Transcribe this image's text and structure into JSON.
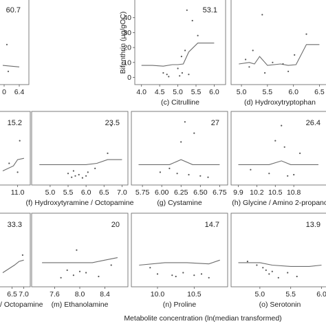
{
  "chart_data": {
    "type": "scatter",
    "ylabel": "Bifenthrin (μg/gOC)",
    "xlabel": "Metabolite concentration (ln(median transformed)",
    "panels": [
      {
        "label": "",
        "stat": "60.7",
        "xticks": [
          "0",
          "6.4"
        ],
        "xlim": [
          5.8,
          6.6
        ],
        "ylim": [
          -3,
          50
        ],
        "yticks": [],
        "line": [
          [
            5.8,
            8
          ],
          [
            6.4,
            7
          ]
        ],
        "points": [
          [
            5.95,
            22
          ],
          [
            6.0,
            4
          ]
        ]
      },
      {
        "label": "(c) Citrulline",
        "stat": "53.1",
        "xticks": [
          "4.0",
          "4.5",
          "5.0",
          "5.5",
          "6.0"
        ],
        "xlim": [
          3.93,
          6.2
        ],
        "ylim": [
          -3,
          50
        ],
        "yticks": [
          "0",
          "10",
          "20",
          "30",
          "40"
        ],
        "line": [
          [
            4.0,
            8
          ],
          [
            4.3,
            8
          ],
          [
            4.6,
            7.5
          ],
          [
            4.85,
            8.5
          ],
          [
            5.0,
            8.5
          ],
          [
            5.15,
            9
          ],
          [
            5.3,
            17
          ],
          [
            5.55,
            23
          ],
          [
            6.0,
            23
          ]
        ],
        "points": [
          [
            4.6,
            3
          ],
          [
            4.7,
            2
          ],
          [
            5.0,
            6
          ],
          [
            5.05,
            1
          ],
          [
            5.1,
            14
          ],
          [
            5.2,
            18
          ],
          [
            5.25,
            45
          ],
          [
            5.4,
            38
          ],
          [
            5.55,
            28
          ],
          [
            4.75,
            0.5
          ],
          [
            5.12,
            3
          ],
          [
            5.3,
            2
          ]
        ]
      },
      {
        "label": "(d) Hydroxytryptophan",
        "stat": "",
        "xticks": [
          "5.0",
          "5.5",
          "6.0",
          "6.5"
        ],
        "xlim": [
          4.88,
          6.6
        ],
        "ylim": [
          -3,
          50
        ],
        "yticks": [],
        "line": [
          [
            4.95,
            9
          ],
          [
            5.15,
            10
          ],
          [
            5.25,
            9
          ],
          [
            5.35,
            14
          ],
          [
            5.5,
            8
          ],
          [
            5.75,
            9
          ],
          [
            5.9,
            8
          ],
          [
            6.05,
            8.5
          ],
          [
            6.25,
            22
          ],
          [
            6.5,
            22
          ]
        ],
        "points": [
          [
            5.08,
            12
          ],
          [
            5.15,
            7
          ],
          [
            5.22,
            18
          ],
          [
            5.4,
            42
          ],
          [
            5.6,
            10
          ],
          [
            5.8,
            9
          ],
          [
            6.02,
            15
          ],
          [
            6.25,
            29
          ],
          [
            5.45,
            3
          ],
          [
            5.9,
            4
          ]
        ]
      },
      {
        "label": "",
        "stat": "15.2",
        "xticks": [
          "11.0"
        ],
        "xlim": [
          10.3,
          11.4
        ],
        "ylim": [
          -3,
          50
        ],
        "yticks": [],
        "line": [
          [
            10.3,
            6
          ],
          [
            10.8,
            10
          ],
          [
            11.0,
            15
          ],
          [
            11.3,
            16
          ]
        ],
        "points": [
          [
            10.6,
            12
          ],
          [
            11.1,
            30
          ],
          [
            11.0,
            5
          ]
        ]
      },
      {
        "label": "(f) Hydroxytyramine / Octopamine",
        "stat": "23.5",
        "xticks": [
          "5.0",
          "5.5",
          "6.0",
          "6.5",
          "7.0"
        ],
        "xlim": [
          4.6,
          7.05
        ],
        "ylim": [
          -3,
          50
        ],
        "yticks": [],
        "line": [
          [
            4.7,
            11
          ],
          [
            5.5,
            11
          ],
          [
            6.0,
            11
          ],
          [
            6.3,
            12
          ],
          [
            6.6,
            15
          ],
          [
            7.0,
            15
          ]
        ],
        "points": [
          [
            5.6,
            1
          ],
          [
            5.7,
            2
          ],
          [
            5.8,
            3
          ],
          [
            6.05,
            5
          ],
          [
            6.25,
            8
          ],
          [
            6.6,
            20
          ],
          [
            5.9,
            0.5
          ],
          [
            6.0,
            2
          ],
          [
            5.65,
            6
          ],
          [
            5.5,
            4
          ],
          [
            6.7,
            42
          ]
        ]
      },
      {
        "label": "(g) Cystamine",
        "stat": "27",
        "xticks": [
          "5.75",
          "6.00",
          "6.25",
          "6.50",
          "6.75"
        ],
        "xlim": [
          5.66,
          6.8
        ],
        "ylim": [
          -3,
          50
        ],
        "yticks": [],
        "line": [
          [
            5.7,
            11
          ],
          [
            6.1,
            11
          ],
          [
            6.25,
            15
          ],
          [
            6.4,
            11
          ],
          [
            6.75,
            11
          ]
        ],
        "points": [
          [
            5.98,
            5
          ],
          [
            6.1,
            8
          ],
          [
            6.25,
            29
          ],
          [
            6.3,
            45
          ],
          [
            6.42,
            36
          ],
          [
            6.5,
            2
          ],
          [
            6.6,
            1
          ],
          [
            6.2,
            4
          ],
          [
            6.35,
            3
          ]
        ]
      },
      {
        "label": "(h) Glycine / Amino 2-propano",
        "stat": "26.4",
        "xticks": [
          "9.9",
          "10.2",
          "10.5",
          "10.8"
        ],
        "xlim": [
          9.85,
          11.3
        ],
        "ylim": [
          -3,
          50
        ],
        "yticks": [],
        "line": [
          [
            9.9,
            11
          ],
          [
            10.4,
            11
          ],
          [
            10.6,
            14
          ],
          [
            10.75,
            11
          ],
          [
            11.2,
            11
          ]
        ],
        "points": [
          [
            10.1,
            7
          ],
          [
            10.5,
            30
          ],
          [
            10.65,
            25
          ],
          [
            10.9,
            20
          ],
          [
            10.7,
            2
          ],
          [
            10.8,
            3
          ],
          [
            10.4,
            4
          ],
          [
            10.6,
            42
          ]
        ]
      },
      {
        "label": "/ Octopamine",
        "stat": "33.3",
        "xticks": [
          "6.5",
          "7.0"
        ],
        "xlim": [
          6.1,
          7.1
        ],
        "ylim": [
          -3,
          50
        ],
        "yticks": [],
        "line": [
          [
            6.1,
            6
          ],
          [
            6.6,
            12
          ],
          [
            6.8,
            15
          ],
          [
            7.0,
            16
          ]
        ],
        "points": [
          [
            6.95,
            20
          ]
        ]
      },
      {
        "label": "(m) Ethanolamine",
        "stat": "20",
        "xticks": [
          "7.6",
          "8.0",
          "8.4"
        ],
        "xlim": [
          7.3,
          8.7
        ],
        "ylim": [
          -3,
          50
        ],
        "yticks": [],
        "line": [
          [
            7.4,
            14
          ],
          [
            7.8,
            14
          ],
          [
            8.2,
            14
          ],
          [
            8.4,
            16
          ],
          [
            8.6,
            18
          ]
        ],
        "points": [
          [
            7.7,
            2
          ],
          [
            7.9,
            4
          ],
          [
            8.1,
            6
          ],
          [
            8.3,
            3
          ],
          [
            8.5,
            12
          ],
          [
            7.95,
            24
          ],
          [
            7.8,
            8
          ],
          [
            8.0,
            7
          ]
        ]
      },
      {
        "label": "(n) Proline",
        "stat": "14.7",
        "xticks": [
          "10.0",
          "10.5"
        ],
        "xlim": [
          9.7,
          10.9
        ],
        "ylim": [
          -3,
          50
        ],
        "yticks": [],
        "line": [
          [
            9.75,
            12
          ],
          [
            10.1,
            14
          ],
          [
            10.4,
            14
          ],
          [
            10.7,
            13
          ],
          [
            10.85,
            16
          ]
        ],
        "points": [
          [
            9.9,
            10
          ],
          [
            10.0,
            5
          ],
          [
            10.2,
            4
          ],
          [
            10.35,
            6
          ],
          [
            10.5,
            4
          ],
          [
            10.6,
            5
          ],
          [
            10.25,
            3
          ],
          [
            10.7,
            2
          ]
        ]
      },
      {
        "label": "(o) Serotonin",
        "stat": "13.9",
        "xticks": [
          "5.0",
          "5.5",
          "6.0"
        ],
        "xlim": [
          4.6,
          6.05
        ],
        "ylim": [
          -3,
          50
        ],
        "yticks": [],
        "line": [
          [
            4.65,
            14
          ],
          [
            5.0,
            14
          ],
          [
            5.2,
            12
          ],
          [
            5.5,
            11
          ],
          [
            5.8,
            11
          ],
          [
            6.0,
            12
          ]
        ],
        "points": [
          [
            4.95,
            12
          ],
          [
            5.05,
            10
          ],
          [
            5.1,
            8
          ],
          [
            5.15,
            5
          ],
          [
            5.3,
            2
          ],
          [
            5.45,
            6
          ],
          [
            5.6,
            3
          ],
          [
            5.2,
            7
          ],
          [
            4.8,
            15
          ]
        ]
      }
    ]
  }
}
